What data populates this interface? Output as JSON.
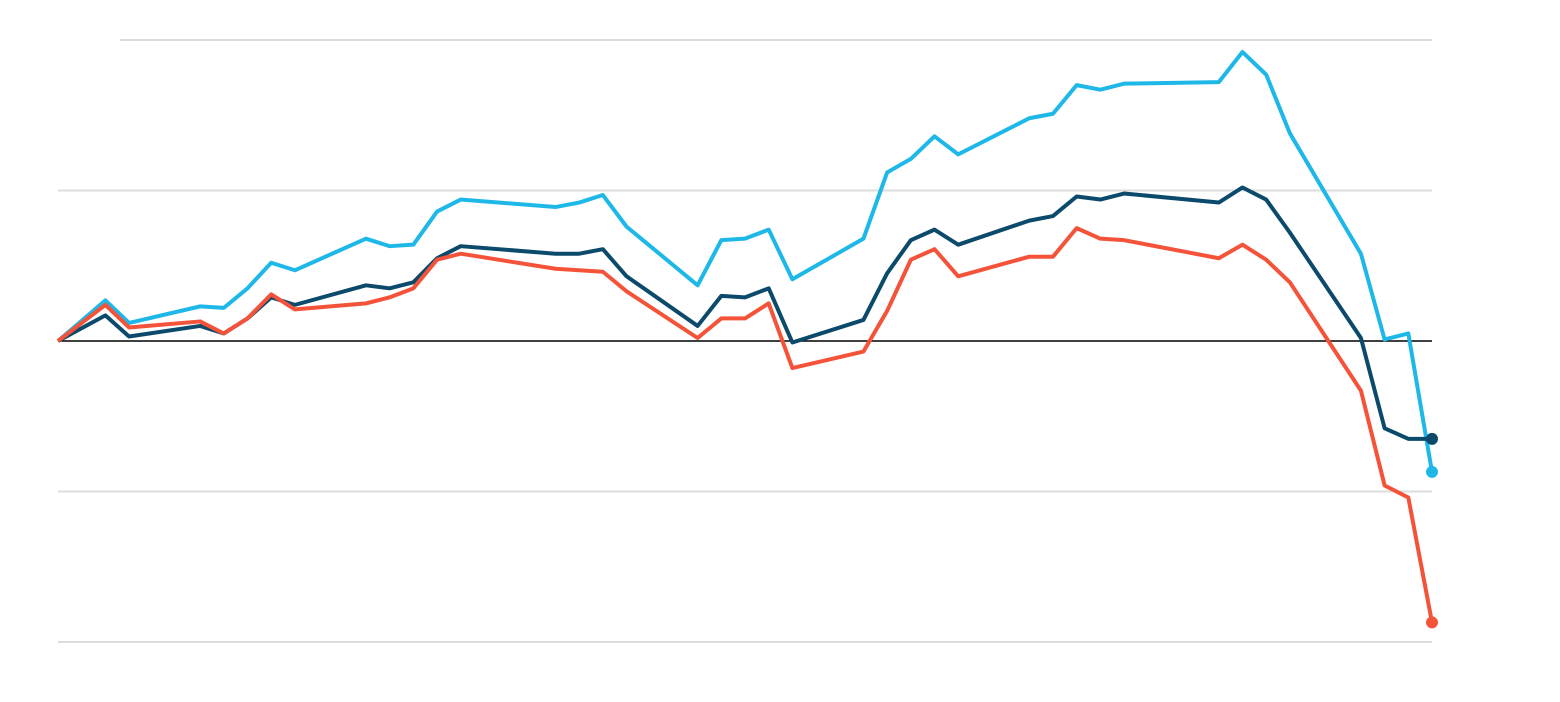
{
  "chart_data": {
    "type": "line",
    "x": [
      0,
      2,
      3,
      6,
      7,
      8,
      9,
      10,
      13,
      14,
      15,
      16,
      17,
      21,
      22,
      23,
      24,
      27,
      28,
      29,
      30,
      31,
      34,
      35,
      36,
      37,
      38,
      41,
      42,
      43,
      44,
      45,
      49,
      50,
      51,
      52,
      55,
      56,
      57,
      58
    ],
    "xlim": [
      0,
      58
    ],
    "ylim": [
      -2,
      2
    ],
    "yticks": [
      -2,
      -1,
      0,
      1,
      2
    ],
    "baseline": 0,
    "grid": true,
    "end_markers": true,
    "series": [
      {
        "color": "#1eb8e8",
        "values": [
          0,
          0.27,
          0.12,
          0.23,
          0.22,
          0.35,
          0.52,
          0.47,
          0.68,
          0.63,
          0.64,
          0.86,
          0.94,
          0.89,
          0.92,
          0.97,
          0.76,
          0.37,
          0.67,
          0.68,
          0.74,
          0.41,
          0.68,
          1.12,
          1.21,
          1.36,
          1.24,
          1.48,
          1.51,
          1.7,
          1.67,
          1.71,
          1.72,
          1.92,
          1.77,
          1.38,
          0.58,
          0.01,
          0.05,
          -0.87
        ]
      },
      {
        "color": "#0b4a6b",
        "values": [
          0,
          0.17,
          0.03,
          0.1,
          0.05,
          0.15,
          0.29,
          0.24,
          0.37,
          0.35,
          0.39,
          0.55,
          0.63,
          0.58,
          0.58,
          0.61,
          0.43,
          0.1,
          0.3,
          0.29,
          0.35,
          -0.01,
          0.14,
          0.45,
          0.67,
          0.74,
          0.64,
          0.8,
          0.83,
          0.96,
          0.94,
          0.98,
          0.92,
          1.02,
          0.94,
          0.72,
          0.02,
          -0.58,
          -0.65,
          -0.65
        ]
      },
      {
        "color": "#f4533a",
        "values": [
          0,
          0.24,
          0.09,
          0.13,
          0.05,
          0.15,
          0.31,
          0.21,
          0.25,
          0.29,
          0.35,
          0.54,
          0.58,
          0.48,
          0.47,
          0.46,
          0.33,
          0.02,
          0.15,
          0.15,
          0.25,
          -0.18,
          -0.07,
          0.2,
          0.54,
          0.61,
          0.43,
          0.56,
          0.56,
          0.75,
          0.68,
          0.67,
          0.55,
          0.64,
          0.54,
          0.39,
          -0.33,
          -0.96,
          -1.04,
          -1.87
        ]
      }
    ]
  }
}
